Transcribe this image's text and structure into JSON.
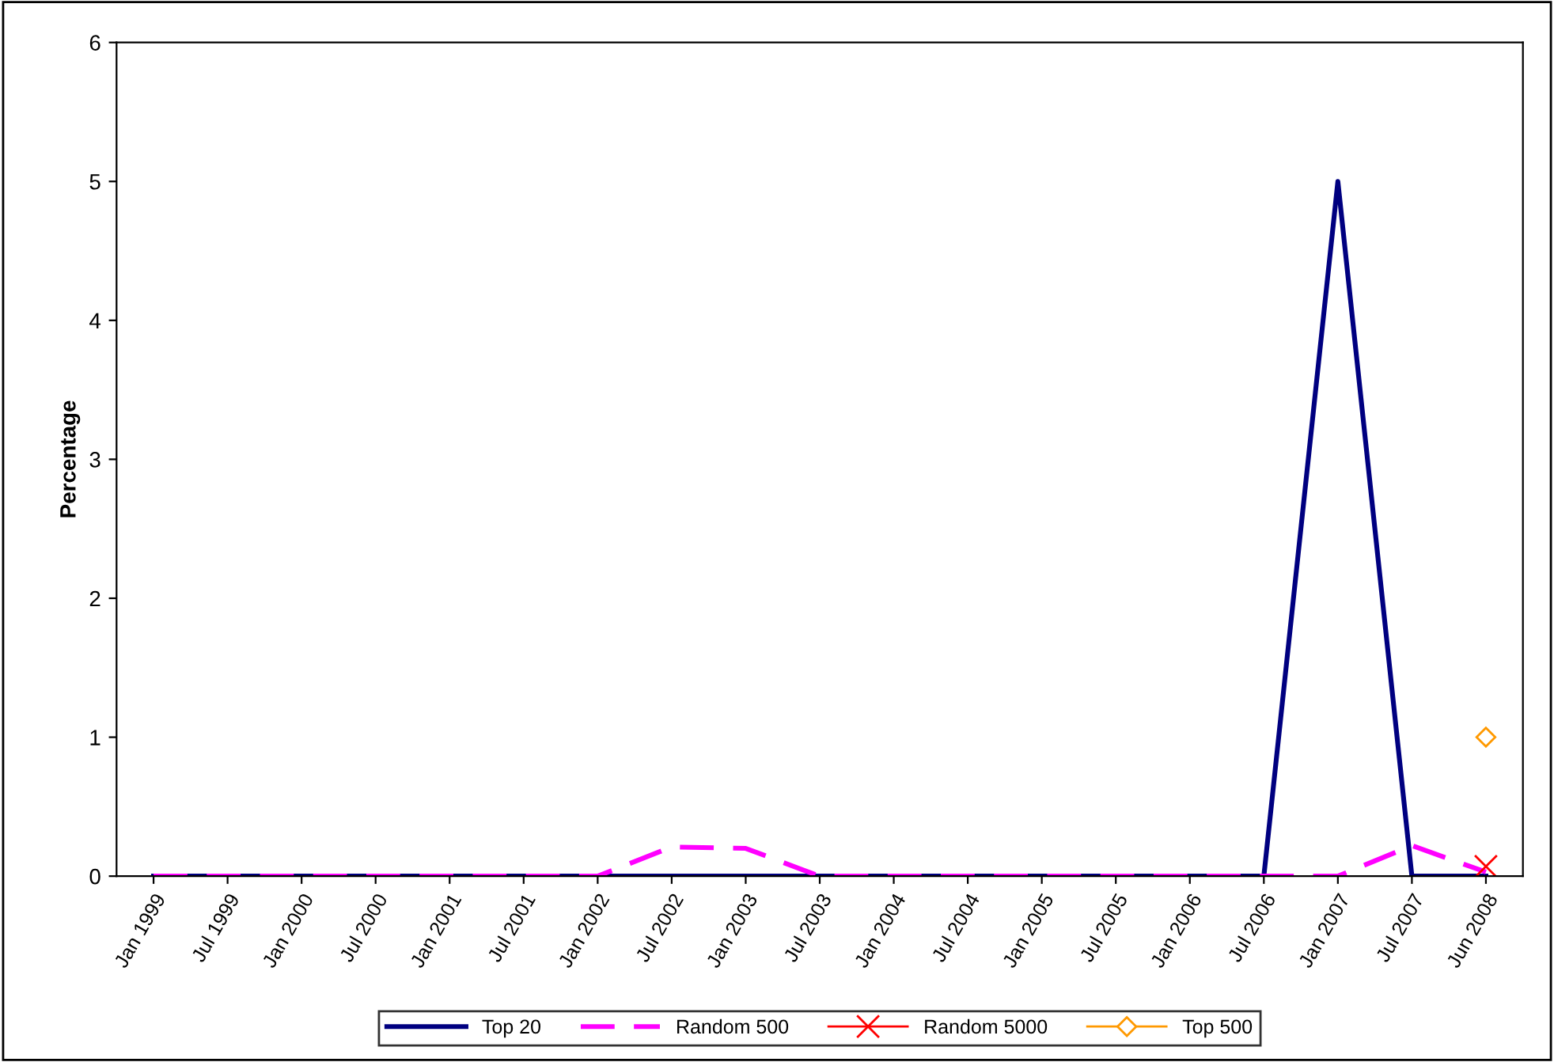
{
  "chart_data": {
    "type": "line",
    "ylabel": "Percentage",
    "categories": [
      "Jan 1999",
      "Jul 1999",
      "Jan 2000",
      "Jul 2000",
      "Jan 2001",
      "Jul 2001",
      "Jan 2002",
      "Jul 2002",
      "Jan 2003",
      "Jul 2003",
      "Jan 2004",
      "Jul 2004",
      "Jan 2005",
      "Jul 2005",
      "Jan 2006",
      "Jul 2006",
      "Jan 2007",
      "Jul 2007",
      "Jun 2008"
    ],
    "series": [
      {
        "name": "Top 20",
        "color": "#000080",
        "line_style": "solid",
        "marker": "none",
        "values": [
          0,
          0,
          0,
          0,
          0,
          0,
          0,
          0,
          0,
          0,
          0,
          0,
          0,
          0,
          0,
          0,
          5,
          0,
          0
        ]
      },
      {
        "name": "Random 500",
        "color": "#ff00ff",
        "line_style": "dashed",
        "marker": "none",
        "values": [
          0,
          0,
          0,
          0,
          0,
          0,
          0,
          0.21,
          0.2,
          0,
          0,
          0,
          0,
          0,
          0,
          0,
          0,
          0.22,
          0.03
        ]
      },
      {
        "name": "Random 5000",
        "color": "#ff0000",
        "line_style": "solid",
        "marker": "cross",
        "values": [
          null,
          null,
          null,
          null,
          null,
          null,
          null,
          null,
          null,
          null,
          null,
          null,
          null,
          null,
          null,
          null,
          null,
          null,
          0.07
        ]
      },
      {
        "name": "Top 500",
        "color": "#ff9900",
        "line_style": "solid",
        "marker": "diamond",
        "values": [
          null,
          null,
          null,
          null,
          null,
          null,
          null,
          null,
          null,
          null,
          null,
          null,
          null,
          null,
          null,
          null,
          null,
          null,
          1
        ]
      }
    ],
    "ylim": [
      0,
      6
    ],
    "yticks": [
      0,
      1,
      2,
      3,
      4,
      5,
      6
    ],
    "grid": false,
    "legend": "bottom"
  }
}
